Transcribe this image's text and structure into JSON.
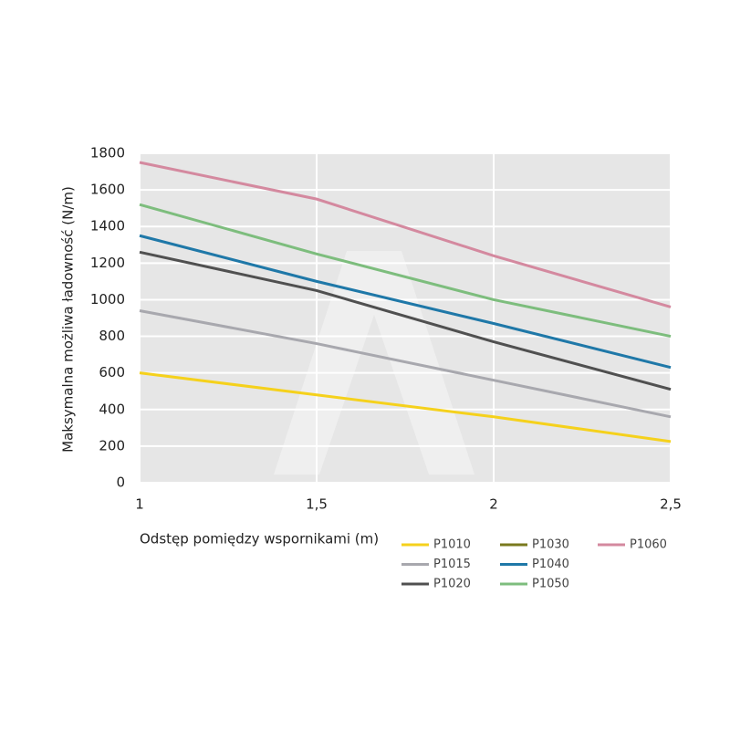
{
  "chart_data": {
    "type": "line",
    "ylabel": "Maksymalna możliwa ładowność (N/m)",
    "xlabel": "Odstęp pomiędzy wspornikami (m)",
    "x": [
      1,
      1.5,
      2,
      2.5
    ],
    "xlim": [
      1,
      2.5
    ],
    "xticks": [
      1,
      {
        "value": 1.5,
        "label": "1,5"
      },
      2,
      {
        "value": 2.5,
        "label": "2,5"
      }
    ],
    "ylim": [
      0,
      1800
    ],
    "yticks": [
      0,
      200,
      400,
      600,
      800,
      1000,
      1200,
      1400,
      1600,
      1800
    ],
    "grid": true,
    "legend": "bottom-right",
    "series": [
      {
        "name": "P1010",
        "color": "#f5d11c",
        "values": [
          600,
          480,
          360,
          225
        ]
      },
      {
        "name": "P1015",
        "color": "#a8a8ae",
        "values": [
          940,
          760,
          560,
          360
        ]
      },
      {
        "name": "P1020",
        "color": "#505050",
        "values": [
          1260,
          1050,
          770,
          510
        ]
      },
      {
        "name": "P1030",
        "color": "#7a7a1e",
        "values": [
          null,
          null,
          null,
          null
        ]
      },
      {
        "name": "P1040",
        "color": "#1f78a8",
        "values": [
          1350,
          1100,
          870,
          630
        ]
      },
      {
        "name": "P1050",
        "color": "#7dbd7d",
        "values": [
          1520,
          1250,
          1000,
          800
        ]
      },
      {
        "name": "P1060",
        "color": "#d4899f",
        "values": [
          1750,
          1550,
          1240,
          960
        ]
      }
    ]
  }
}
